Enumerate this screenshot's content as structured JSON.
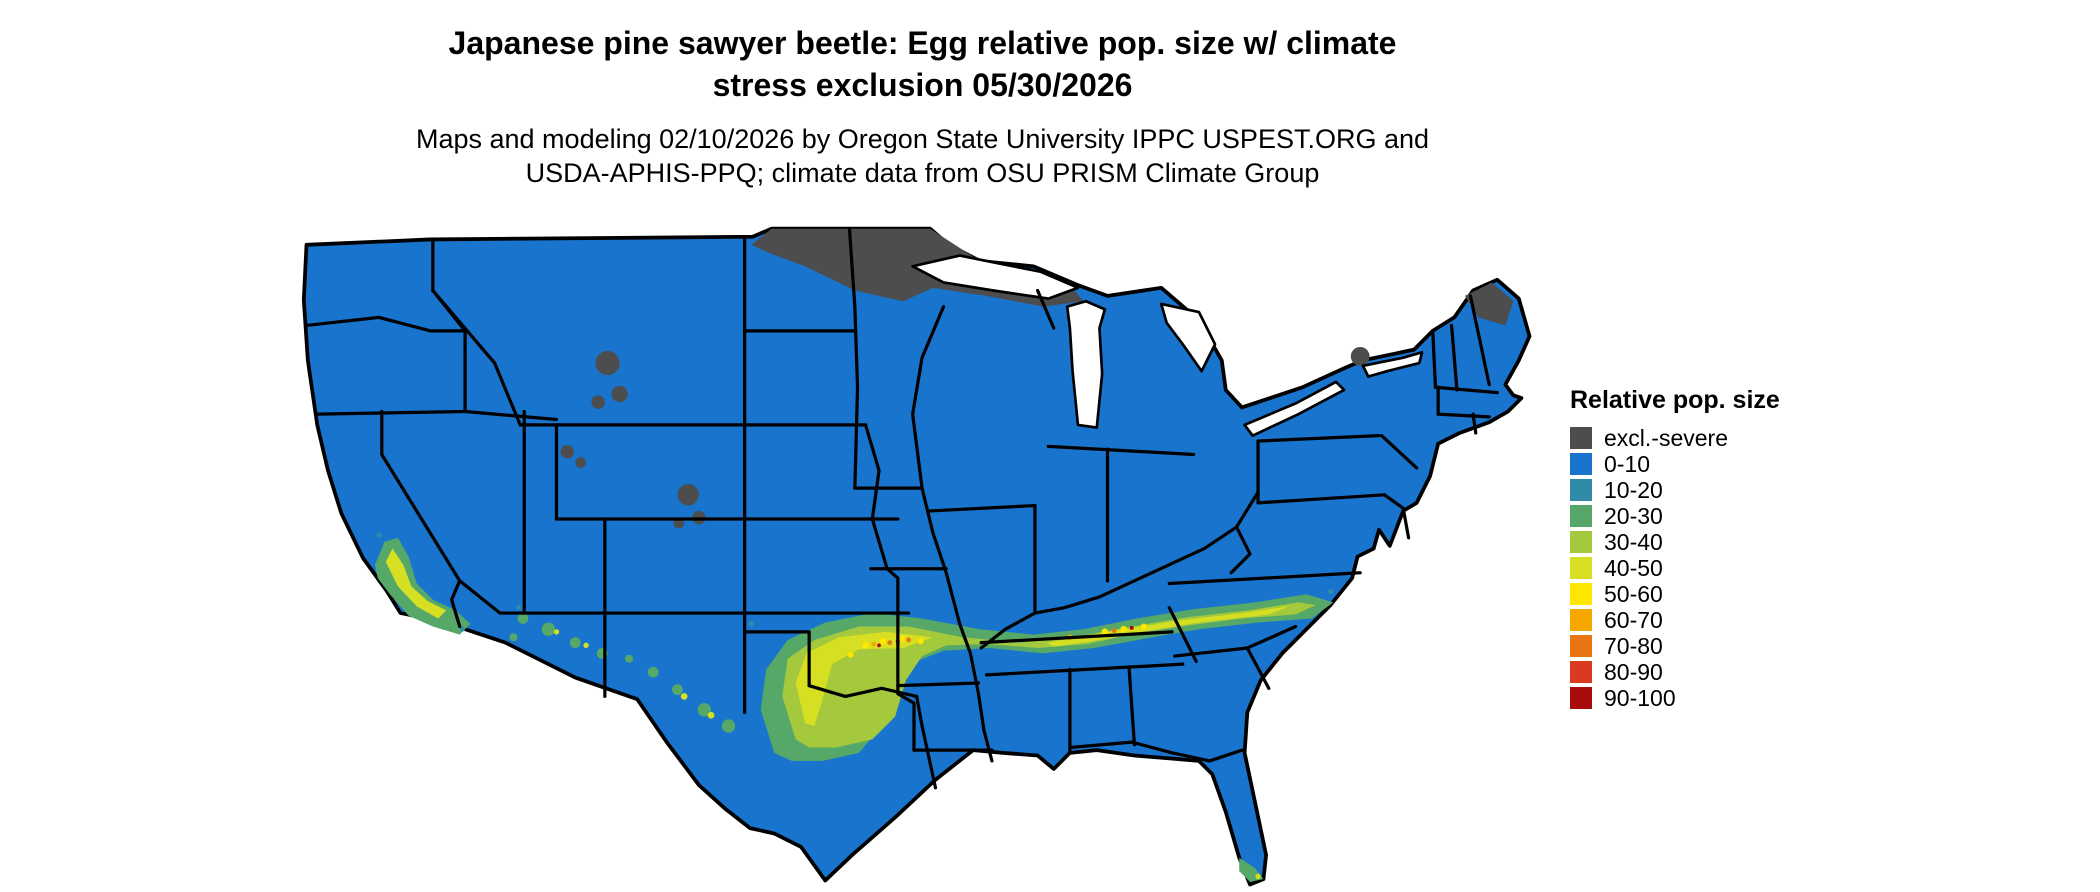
{
  "title": {
    "line1": "Japanese pine sawyer beetle: Egg relative pop. size w/ climate",
    "line2": "stress exclusion 05/30/2026"
  },
  "subtitle": {
    "line1": "Maps and modeling 02/10/2026 by Oregon State University IPPC USPEST.ORG and",
    "line2": "USDA-APHIS-PPQ; climate data from OSU PRISM Climate Group"
  },
  "legend": {
    "title": "Relative pop. size",
    "items": [
      {
        "label": "excl.-severe",
        "color": "#4D4D4D"
      },
      {
        "label": "0-10",
        "color": "#1874CD"
      },
      {
        "label": "10-20",
        "color": "#2F8BA8"
      },
      {
        "label": "20-30",
        "color": "#55A868"
      },
      {
        "label": "30-40",
        "color": "#A5C93C"
      },
      {
        "label": "40-50",
        "color": "#D7DF23"
      },
      {
        "label": "50-60",
        "color": "#FFE600"
      },
      {
        "label": "60-70",
        "color": "#F6A800"
      },
      {
        "label": "70-80",
        "color": "#E87511"
      },
      {
        "label": "80-90",
        "color": "#D93A20"
      },
      {
        "label": "90-100",
        "color": "#A80D0D"
      }
    ]
  },
  "map": {
    "region": "Contiguous United States with state boundaries",
    "base_class": "0-10",
    "base_color": "#1874CD",
    "state_border_color": "#000000",
    "background_color": "#FFFFFF",
    "features": [
      {
        "area": "Northern Minnesota / western Great Lakes border",
        "class": "excl.-severe"
      },
      {
        "area": "Northern Maine",
        "class": "excl.-severe"
      },
      {
        "area": "Adirondacks, northern New York",
        "class": "excl.-severe"
      },
      {
        "area": "Wyoming and Colorado high Rockies",
        "class": "excl.-severe"
      },
      {
        "area": "Band from central Texas across the Gulf states to the Carolinas",
        "class": "30-60 with scattered 60-100 hotspots"
      },
      {
        "area": "Southern Arizona and New Mexico speckled band",
        "class": "30-50"
      },
      {
        "area": "California central valley and southern California",
        "class": "30-60"
      },
      {
        "area": "Southern tip of Florida",
        "class": "30-50"
      }
    ]
  }
}
